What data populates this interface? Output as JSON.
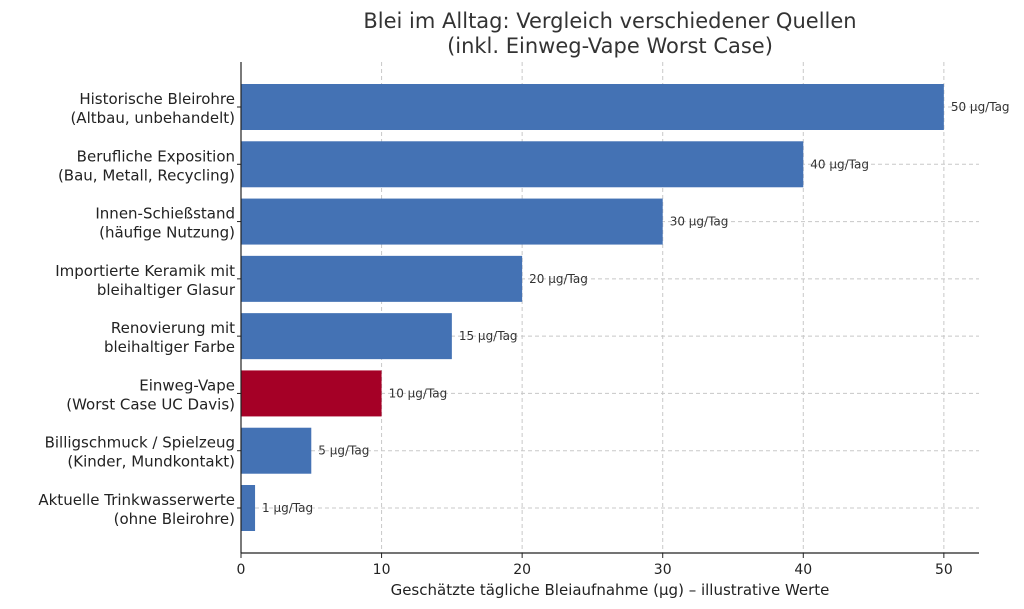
{
  "chart_data": {
    "type": "bar",
    "orientation": "horizontal",
    "title": "Blei im Alltag: Vergleich verschiedener Quellen",
    "subtitle": "(inkl. Einweg-Vape Worst Case)",
    "xlabel": "Geschätzte tägliche Bleiaufnahme (µg) – illustrative Werte",
    "ylabel": "",
    "xlim": [
      0,
      52.5
    ],
    "xticks": [
      0,
      10,
      20,
      30,
      40,
      50
    ],
    "grid": true,
    "categories": [
      [
        "Historische Bleirohre",
        "(Altbau, unbehandelt)"
      ],
      [
        "Berufliche Exposition",
        "(Bau, Metall, Recycling)"
      ],
      [
        "Innen-Schießstand",
        "(häufige Nutzung)"
      ],
      [
        "Importierte Keramik mit",
        "bleihaltiger Glasur"
      ],
      [
        "Renovierung mit",
        "bleihaltiger Farbe"
      ],
      [
        "Einweg-Vape",
        "(Worst Case UC Davis)"
      ],
      [
        "Billigschmuck / Spielzeug",
        "(Kinder, Mundkontakt)"
      ],
      [
        "Aktuelle Trinkwasserwerte",
        "(ohne Bleirohre)"
      ]
    ],
    "values": [
      50,
      40,
      30,
      20,
      15,
      10,
      5,
      1
    ],
    "value_labels": [
      "50 µg/Tag",
      "40 µg/Tag",
      "30 µg/Tag",
      "20 µg/Tag",
      "15 µg/Tag",
      "10 µg/Tag",
      "5 µg/Tag",
      "1 µg/Tag"
    ],
    "colors": [
      "#4472b4",
      "#4472b4",
      "#4472b4",
      "#4472b4",
      "#4472b4",
      "#a50026",
      "#4472b4",
      "#4472b4"
    ],
    "highlight_index": 5
  }
}
